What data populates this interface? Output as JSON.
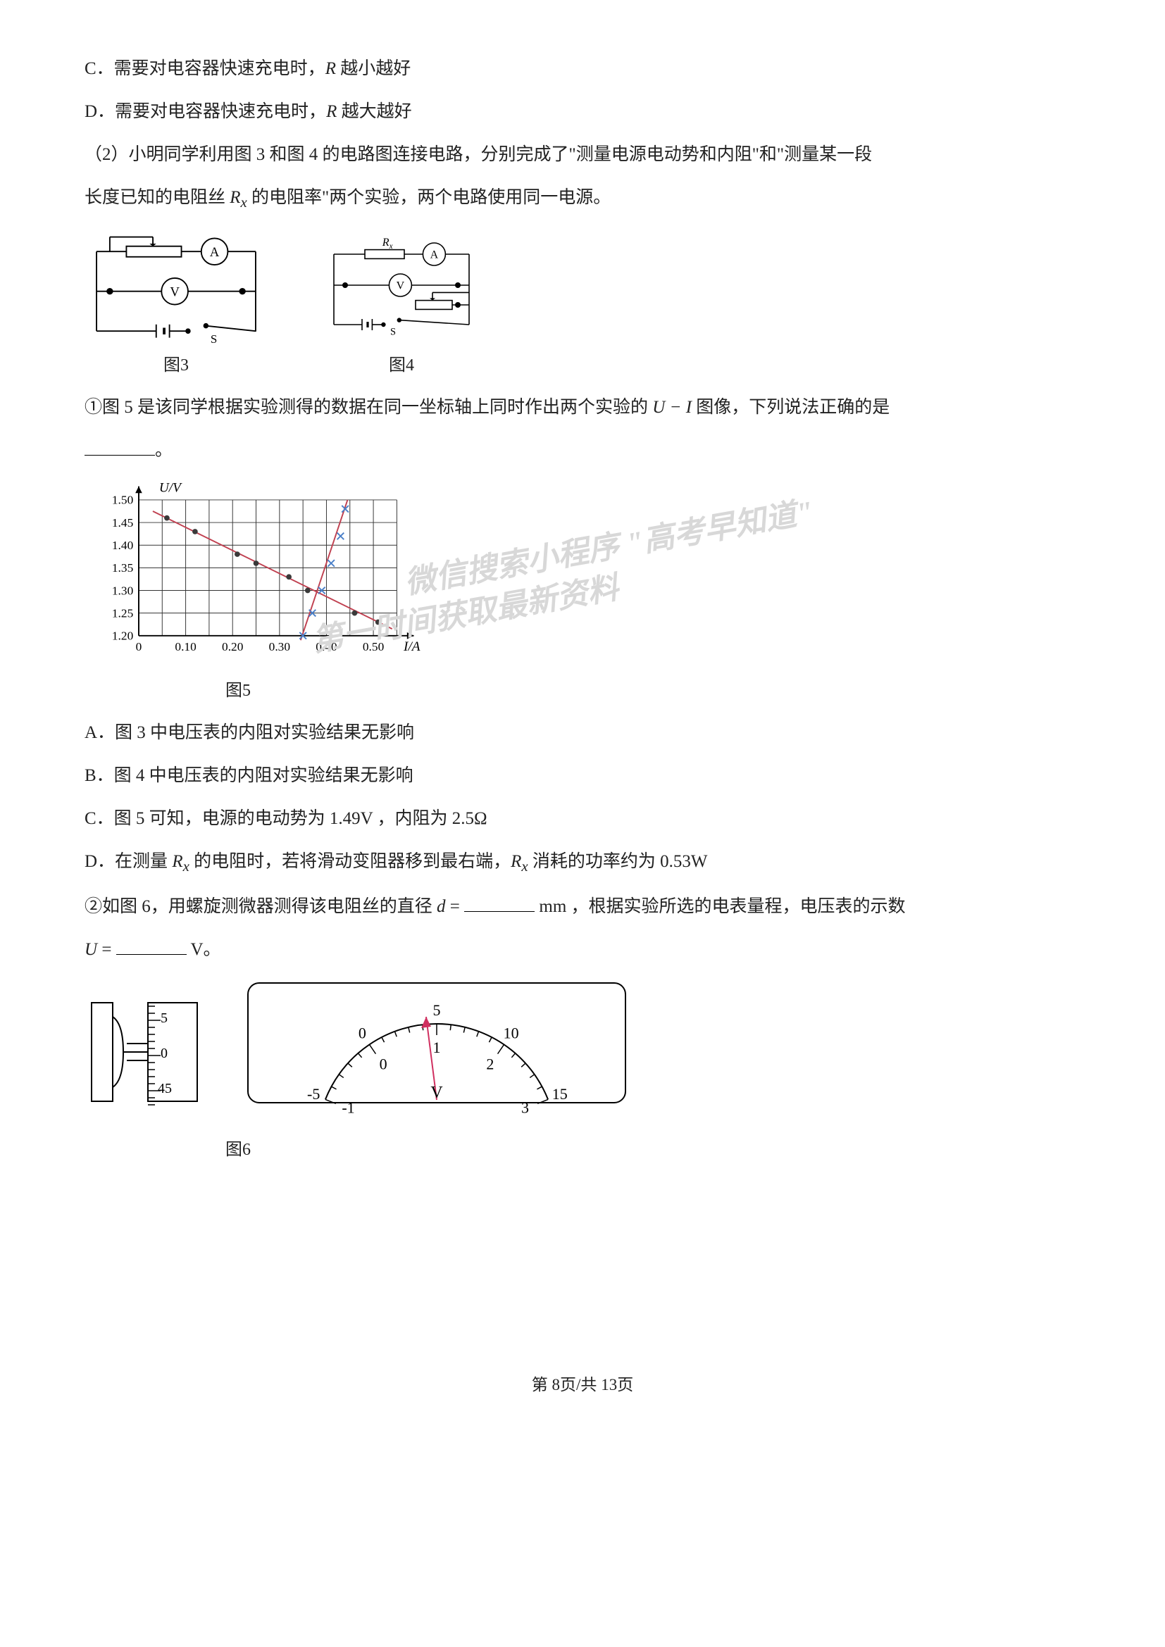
{
  "optC": "C．需要对电容器快速充电时，",
  "optC_R": "R",
  "optC_tail": " 越小越好",
  "optD": "D．需要对电容器快速充电时，",
  "optD_R": "R",
  "optD_tail": " 越大越好",
  "p2_a": "（2）小明同学利用图 3 和图 4 的电路图连接电路，分别完成了\"测量电源电动势和内阻\"和\"测量某一段",
  "p2_b": "长度已知的电阻丝 ",
  "p2_Rx": "R",
  "p2_c": " 的电阻率\"两个实验，两个电路使用同一电源。",
  "fig3_label": "图3",
  "fig4_label": "图4",
  "fig4_Rx": "Rₓ",
  "switch_S": "S",
  "q1_a": "①图 5 是该同学根据实验测得的数据在同一坐标轴上同时作出两个实验的 ",
  "q1_UI": "U − I",
  "q1_b": " 图像，下列说法正确的是",
  "q1_blank_after": "。",
  "graph": {
    "y_label": "U/V",
    "x_label": "I/A",
    "y_ticks": [
      "1.20",
      "1.25",
      "1.30",
      "1.35",
      "1.40",
      "1.45",
      "1.50"
    ],
    "x_ticks": [
      "0",
      "0.10",
      "0.20",
      "0.30",
      "0.40",
      "0.50"
    ],
    "line1_color": "#c04050",
    "line2_color": "#c04050",
    "marker_dot_color": "#3a3a3a",
    "marker_x_color": "#4a7fc8",
    "grid_color": "#333333",
    "line1_points": [
      [
        0.06,
        1.46
      ],
      [
        0.12,
        1.43
      ],
      [
        0.21,
        1.38
      ],
      [
        0.25,
        1.36
      ],
      [
        0.32,
        1.33
      ],
      [
        0.36,
        1.3
      ],
      [
        0.46,
        1.25
      ],
      [
        0.51,
        1.23
      ]
    ],
    "line2_points": [
      [
        0.35,
        1.2
      ],
      [
        0.37,
        1.25
      ],
      [
        0.39,
        1.3
      ],
      [
        0.41,
        1.36
      ],
      [
        0.43,
        1.42
      ],
      [
        0.44,
        1.48
      ]
    ]
  },
  "fig5_label": "图5",
  "wm1": "微信搜索小程序  \"高考早知道\"",
  "wm2": "第一时间获取最新资料",
  "optA2": "A．图 3 中电压表的内阻对实验结果无影响",
  "optB2": "B．图 4 中电压表的内阻对实验结果无影响",
  "optC2": "C．图 5 可知，电源的电动势为 1.49V ，内阻为 2.5Ω",
  "optD2_a": "D．在测量 ",
  "optD2_Rx": "R",
  "optD2_b": " 的电阻时，若将滑动变阻器移到最右端，",
  "optD2_Rx2": "R",
  "optD2_c": " 消耗的功率约为 0.53W",
  "q2_a": "②如图 6，用螺旋测微器测得该电阻丝的直径 ",
  "q2_d": "d",
  "q2_eq": " = ",
  "q2_unit1": " mm ，根据实验所选的电表量程，电压表的示数",
  "q2_U": "U",
  "q2_eq2": " = ",
  "q2_unit2": " V。",
  "micrometer": {
    "vals": [
      "5",
      "0",
      "45"
    ]
  },
  "voltmeter": {
    "outer": [
      "-5",
      "0",
      "5",
      "10",
      "15"
    ],
    "inner": [
      "-1",
      "0",
      "1",
      "2",
      "3"
    ],
    "unit": "V"
  },
  "fig6_label": "图6",
  "footer_a": "第 ",
  "footer_page": "8",
  "footer_b": "页/共 ",
  "footer_total": "13",
  "footer_c": "页"
}
